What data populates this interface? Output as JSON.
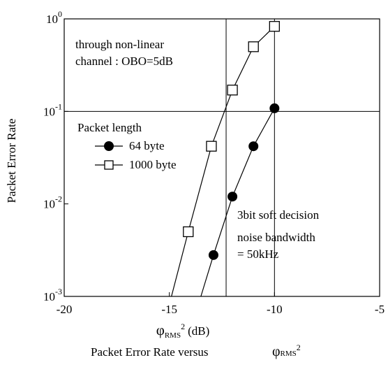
{
  "chart_data": {
    "type": "line",
    "title": "",
    "xlabel": {
      "symbol": "φ",
      "subscript": "RMS",
      "superscript": "2",
      "unit": "(dB)"
    },
    "ylabel": "Packet Error Rate",
    "xlim": [
      -20,
      -5
    ],
    "ylim": [
      0.001,
      1
    ],
    "yscale": "log",
    "x_ticks": [
      {
        "value": -20,
        "label": "-20"
      },
      {
        "value": -15,
        "label": "-15"
      },
      {
        "value": -10,
        "label": "-10"
      },
      {
        "value": -5,
        "label": "-5"
      }
    ],
    "y_ticks": [
      {
        "value": 1,
        "base": "10",
        "exp": "0"
      },
      {
        "value": 0.1,
        "base": "10",
        "exp": "-1"
      },
      {
        "value": 0.01,
        "base": "10",
        "exp": "-2"
      },
      {
        "value": 0.001,
        "base": "10",
        "exp": "-3"
      }
    ],
    "reference_lines": {
      "vertical": [
        -12.3,
        -10
      ],
      "horizontal": [
        0.1
      ]
    },
    "legend": {
      "title": "Packet length",
      "placement": "middle-left"
    },
    "series": [
      {
        "name": "64 byte",
        "marker": "filled-circle",
        "x": [
          -13.5,
          -12.9,
          -12,
          -11,
          -10
        ],
        "y": [
          0.001,
          0.0028,
          0.012,
          0.042,
          0.108
        ],
        "marker_points": [
          1,
          2,
          3,
          4
        ]
      },
      {
        "name": "1000 byte",
        "marker": "open-square",
        "x": [
          -14.9,
          -14.1,
          -13,
          -12,
          -11,
          -10
        ],
        "y": [
          0.001,
          0.005,
          0.042,
          0.17,
          0.5,
          0.83
        ],
        "marker_points": [
          1,
          2,
          3,
          4,
          5
        ]
      }
    ],
    "annotations": {
      "top_left": [
        "through non-linear",
        "channel : OBO=5dB"
      ],
      "right": [
        "3bit soft decision",
        "noise bandwidth",
        "= 50kHz"
      ]
    }
  },
  "caption": {
    "text": "Packet Error Rate versus",
    "symbol": "φ",
    "subscript": "RMS",
    "superscript": "2"
  }
}
